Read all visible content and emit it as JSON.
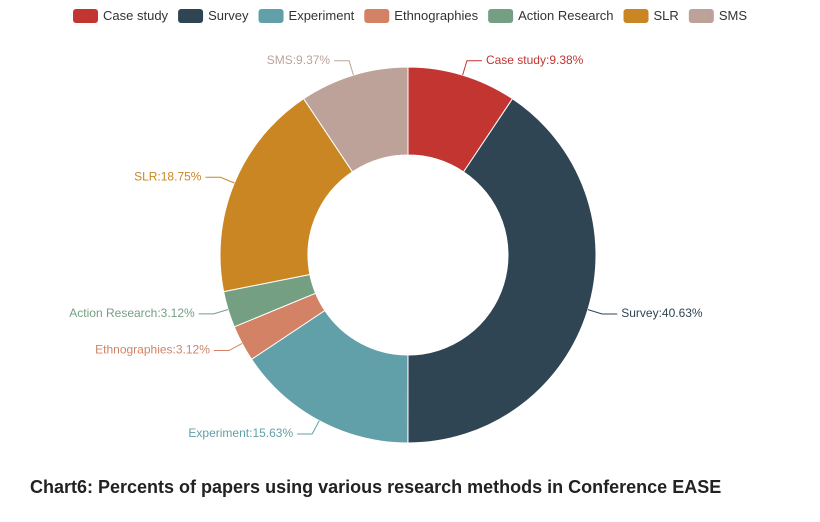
{
  "chart_data": {
    "type": "pie",
    "variant": "donut",
    "categories": [
      "Case study",
      "Survey",
      "Experiment",
      "Ethnographies",
      "Action Research",
      "SLR",
      "SMS"
    ],
    "values": [
      9.38,
      40.63,
      15.63,
      3.12,
      3.12,
      18.75,
      9.37
    ],
    "labels": [
      "Case study:9.38%",
      "Survey:40.63%",
      "Experiment:15.63%",
      "Ethnographies:3.12%",
      "Action Research:3.12%",
      "SLR:18.75%",
      "SMS:9.37%"
    ],
    "colors": [
      "#c23531",
      "#2f4554",
      "#61a0a8",
      "#d48265",
      "#749f83",
      "#ca8622",
      "#bda29a"
    ],
    "legend_position": "top",
    "title": ""
  },
  "caption": "Chart6: Percents of papers using various research methods in Conference EASE"
}
